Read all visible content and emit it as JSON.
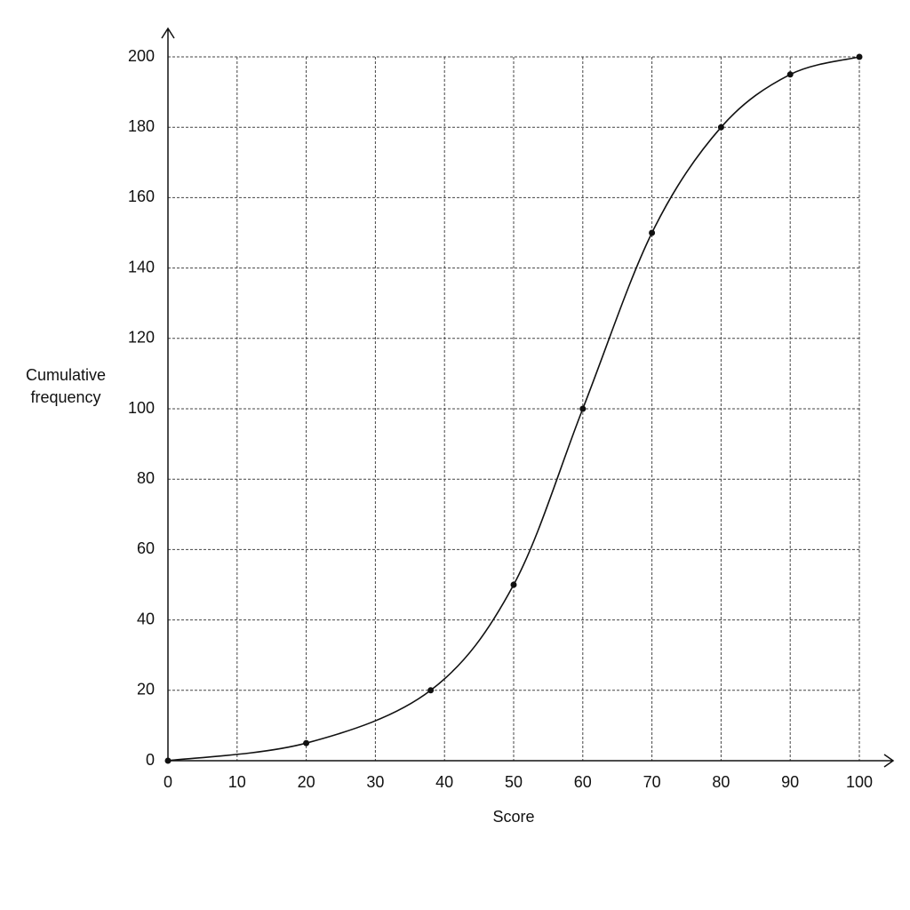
{
  "chart_data": {
    "type": "line",
    "x_label": "Score",
    "y_label": "Cumulative frequency",
    "series": [
      {
        "name": "Cumulative frequency",
        "color": "#111111",
        "x": [
          0,
          20,
          38,
          50,
          60,
          70,
          80,
          90,
          100
        ],
        "values": [
          0,
          5,
          20,
          50,
          100,
          150,
          180,
          195,
          200
        ]
      }
    ],
    "xlim": [
      0,
      100
    ],
    "xticks": [
      0,
      10,
      20,
      30,
      40,
      50,
      60,
      70,
      80,
      90,
      100
    ],
    "ylim": [
      0,
      200
    ],
    "yticks": [
      0,
      20,
      40,
      60,
      80,
      100,
      120,
      140,
      160,
      180,
      200
    ],
    "grid": true
  }
}
